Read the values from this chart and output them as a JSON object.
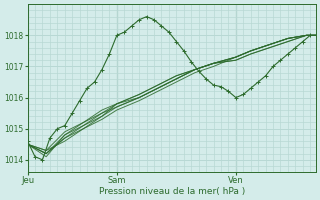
{
  "xlabel": "Pression niveau de la mer( hPa )",
  "bg_color": "#d4ecea",
  "grid_color": "#b8d8d4",
  "line_color": "#2d6b2d",
  "ylim": [
    1013.6,
    1019.0
  ],
  "yticks": [
    1014,
    1015,
    1016,
    1017,
    1018
  ],
  "xtick_labels": [
    "Jeu",
    "Sam",
    "Ven"
  ],
  "xtick_positions": [
    0,
    48,
    112
  ],
  "total_points": 156,
  "series": [
    {
      "x": [
        0,
        10,
        20,
        30,
        40,
        48,
        60,
        70,
        80,
        90,
        100,
        112,
        120,
        130,
        140,
        150,
        155
      ],
      "y": [
        1014.5,
        1014.1,
        1014.8,
        1015.2,
        1015.6,
        1015.8,
        1016.1,
        1016.4,
        1016.7,
        1016.9,
        1017.1,
        1017.2,
        1017.4,
        1017.6,
        1017.8,
        1018.0,
        1018.0
      ]
    },
    {
      "x": [
        0,
        10,
        20,
        30,
        40,
        48,
        60,
        70,
        80,
        90,
        100,
        112,
        120,
        130,
        140,
        150,
        155
      ],
      "y": [
        1014.5,
        1014.2,
        1014.7,
        1015.0,
        1015.4,
        1015.7,
        1016.0,
        1016.3,
        1016.6,
        1016.9,
        1017.1,
        1017.3,
        1017.5,
        1017.7,
        1017.9,
        1018.0,
        1018.0
      ]
    },
    {
      "x": [
        0,
        10,
        20,
        30,
        40,
        48,
        60,
        70,
        80,
        90,
        100,
        112,
        120,
        130,
        140,
        150,
        155
      ],
      "y": [
        1014.5,
        1014.3,
        1014.6,
        1015.0,
        1015.3,
        1015.6,
        1015.9,
        1016.2,
        1016.5,
        1016.8,
        1017.0,
        1017.3,
        1017.5,
        1017.7,
        1017.9,
        1018.0,
        1018.0
      ]
    },
    {
      "x": [
        0,
        10,
        20,
        30,
        40,
        48,
        60,
        70,
        80,
        90,
        100,
        112,
        120,
        130,
        140,
        150,
        155
      ],
      "y": [
        1014.5,
        1014.3,
        1014.9,
        1015.2,
        1015.5,
        1015.8,
        1016.1,
        1016.4,
        1016.7,
        1016.9,
        1017.1,
        1017.3,
        1017.5,
        1017.7,
        1017.9,
        1018.0,
        1018.0
      ]
    },
    {
      "x": [
        0,
        10,
        20,
        30,
        40,
        48,
        60,
        70,
        80,
        90,
        100,
        112,
        120,
        130,
        140,
        150,
        155
      ],
      "y": [
        1014.5,
        1014.2,
        1014.8,
        1015.1,
        1015.4,
        1015.8,
        1016.0,
        1016.3,
        1016.6,
        1016.9,
        1017.1,
        1017.3,
        1017.5,
        1017.7,
        1017.9,
        1018.0,
        1018.0
      ]
    },
    {
      "x": [
        0,
        10,
        20,
        30,
        40,
        48,
        60,
        70,
        80,
        90,
        100,
        112,
        120,
        130,
        140,
        150,
        155
      ],
      "y": [
        1014.5,
        1014.2,
        1014.7,
        1015.1,
        1015.5,
        1015.7,
        1016.0,
        1016.3,
        1016.6,
        1016.9,
        1017.1,
        1017.2,
        1017.4,
        1017.6,
        1017.8,
        1018.0,
        1018.0
      ]
    }
  ],
  "wiggly": {
    "x": [
      0,
      4,
      8,
      12,
      16,
      20,
      24,
      28,
      32,
      36,
      40,
      44,
      48,
      52,
      56,
      60,
      64,
      68,
      72,
      76,
      80,
      84,
      88,
      92,
      96,
      100,
      104,
      108,
      112,
      116,
      120,
      124,
      128,
      132,
      136,
      140,
      144,
      148,
      152,
      155
    ],
    "y": [
      1014.6,
      1014.1,
      1014.0,
      1014.7,
      1015.0,
      1015.1,
      1015.5,
      1015.9,
      1016.3,
      1016.5,
      1016.9,
      1017.4,
      1018.0,
      1018.1,
      1018.3,
      1018.5,
      1018.6,
      1018.5,
      1018.3,
      1018.1,
      1017.8,
      1017.5,
      1017.15,
      1016.85,
      1016.6,
      1016.4,
      1016.35,
      1016.2,
      1016.0,
      1016.1,
      1016.3,
      1016.5,
      1016.7,
      1017.0,
      1017.2,
      1017.4,
      1017.6,
      1017.8,
      1018.0,
      1018.0
    ]
  }
}
